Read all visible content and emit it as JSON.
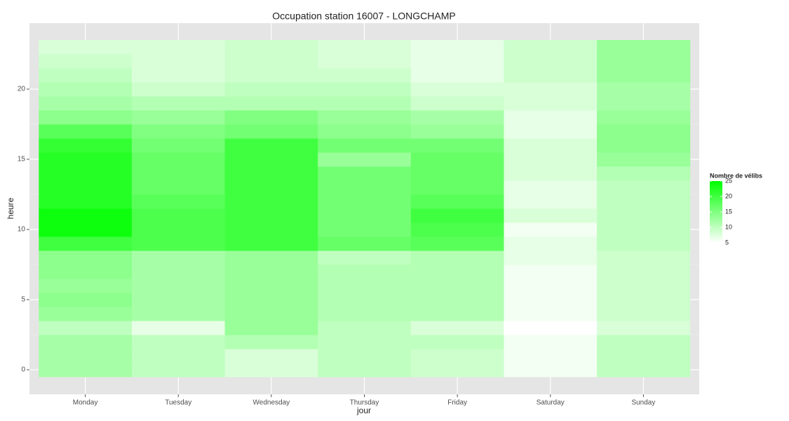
{
  "chart_data": {
    "type": "heatmap",
    "title": "Occupation station 16007 - LONGCHAMP",
    "xlabel": "jour",
    "ylabel": "heure",
    "categories": [
      "Monday",
      "Tuesday",
      "Wednesday",
      "Thursday",
      "Friday",
      "Saturday",
      "Sunday"
    ],
    "y": [
      0,
      1,
      2,
      3,
      4,
      5,
      6,
      7,
      8,
      9,
      10,
      11,
      12,
      13,
      14,
      15,
      16,
      17,
      18,
      19,
      20,
      21,
      22,
      23
    ],
    "values": [
      [
        12,
        12,
        12,
        10,
        13,
        14,
        13,
        14,
        14,
        20,
        24,
        24,
        22,
        22,
        22,
        22,
        21,
        18,
        14,
        12,
        11,
        10,
        9,
        8
      ],
      [
        10,
        10,
        10,
        7,
        12,
        12,
        12,
        12,
        12,
        19,
        19,
        19,
        18,
        17,
        17,
        17,
        16,
        15,
        13,
        11,
        9,
        8,
        8,
        8
      ],
      [
        8,
        8,
        11,
        13,
        13,
        13,
        13,
        13,
        13,
        20,
        20,
        20,
        20,
        20,
        20,
        20,
        20,
        16,
        15,
        11,
        10,
        9,
        9,
        9
      ],
      [
        10,
        10,
        10,
        10,
        11,
        11,
        11,
        11,
        10,
        17,
        16,
        16,
        16,
        16,
        16,
        13,
        16,
        14,
        13,
        11,
        10,
        9,
        8,
        8
      ],
      [
        9,
        9,
        10,
        8,
        11,
        11,
        11,
        11,
        11,
        18,
        19,
        20,
        18,
        17,
        17,
        17,
        16,
        13,
        12,
        9,
        8,
        7,
        7,
        7
      ],
      [
        6,
        6,
        6,
        5,
        6,
        6,
        6,
        6,
        7,
        7,
        6,
        8,
        7,
        7,
        8,
        8,
        8,
        7,
        7,
        8,
        8,
        9,
        9,
        9
      ],
      [
        10,
        10,
        10,
        8,
        9,
        9,
        9,
        9,
        9,
        10,
        10,
        10,
        10,
        10,
        11,
        13,
        14,
        14,
        13,
        12,
        12,
        13,
        13,
        13
      ]
    ],
    "ylim": [
      -1.75,
      24.7
    ],
    "yticks": [
      0,
      5,
      10,
      15,
      20
    ],
    "grid": true,
    "legend_title": "Nombre de vélibs",
    "legend_position": "right",
    "color_low": "#ffffff",
    "color_high": "#00ff00",
    "color_limits": [
      5,
      25
    ],
    "color_ticks": [
      5,
      10,
      15,
      20,
      25
    ]
  }
}
